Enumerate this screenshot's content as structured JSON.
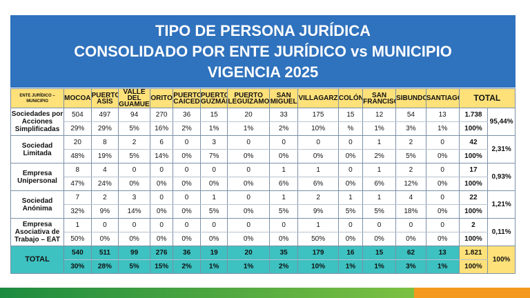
{
  "title": {
    "line1": "TIPO DE PERSONA JURÍDICA",
    "line2": "CONSOLIDADO POR ENTE JURÍDICO vs MUNICIPIO",
    "line3": "VIGENCIA 2025"
  },
  "table": {
    "corner": "ENTE JURÍDICO – MUNICIPIO",
    "municipios": [
      "MOCOA",
      "PUERTO ASÍS",
      "VALLE DEL GUAMUEZ",
      "ORITO",
      "PUERTO CAICEDO",
      "PUERTO GUZMÁN",
      "PUERTO LEGUÍZAMO",
      "SAN MIGUEL",
      "VILLAGARZÓN",
      "COLÓN",
      "SAN FRANCISCO",
      "SIBUNDOY",
      "SANTIAGO"
    ],
    "total_label": "TOTAL",
    "rows": [
      {
        "label": "Sociedades por Acciones Simplificadas",
        "counts": [
          "504",
          "497",
          "94",
          "270",
          "36",
          "15",
          "20",
          "33",
          "175",
          "15",
          "12",
          "54",
          "13"
        ],
        "pcts": [
          "29%",
          "29%",
          "5%",
          "16%",
          "2%",
          "1%",
          "1%",
          "2%",
          "10%",
          "%",
          "1%",
          "3%",
          "1%"
        ],
        "total": "1.738",
        "total_pct": "100%",
        "share": "95,44%"
      },
      {
        "label": "Sociedad Limitada",
        "counts": [
          "20",
          "8",
          "2",
          "6",
          "0",
          "3",
          "0",
          "0",
          "0",
          "0",
          "1",
          "2",
          "0"
        ],
        "pcts": [
          "48%",
          "19%",
          "5%",
          "14%",
          "0%",
          "7%",
          "0%",
          "0%",
          "0%",
          "0%",
          "2%",
          "5%",
          "0%"
        ],
        "total": "42",
        "total_pct": "100%",
        "share": "2,31%"
      },
      {
        "label": "Empresa Unipersonal",
        "counts": [
          "8",
          "4",
          "0",
          "0",
          "0",
          "0",
          "0",
          "1",
          "1",
          "0",
          "1",
          "2",
          "0"
        ],
        "pcts": [
          "47%",
          "24%",
          "0%",
          "0%",
          "0%",
          "0%",
          "0%",
          "6%",
          "6%",
          "0%",
          "6%",
          "12%",
          "0%"
        ],
        "total": "17",
        "total_pct": "100%",
        "share": "0,93%"
      },
      {
        "label": "Sociedad Anónima",
        "counts": [
          "7",
          "2",
          "3",
          "0",
          "0",
          "1",
          "0",
          "1",
          "2",
          "1",
          "1",
          "4",
          "0"
        ],
        "pcts": [
          "32%",
          "9%",
          "14%",
          "0%",
          "0%",
          "5%",
          "0%",
          "5%",
          "9%",
          "5%",
          "5%",
          "18%",
          "0%"
        ],
        "total": "22",
        "total_pct": "100%",
        "share": "1,21%"
      },
      {
        "label": "Empresa Asociativa de Trabajo – EAT",
        "counts": [
          "1",
          "0",
          "0",
          "0",
          "0",
          "0",
          "0",
          "0",
          "1",
          "0",
          "0",
          "0",
          "0"
        ],
        "pcts": [
          "50%",
          "0%",
          "0%",
          "0%",
          "0%",
          "0%",
          "0%",
          "0%",
          "50%",
          "0%",
          "0%",
          "0%",
          "0%"
        ],
        "total": "2",
        "total_pct": "100%",
        "share": "0,11%"
      }
    ],
    "total_row": {
      "label": "TOTAL",
      "counts": [
        "540",
        "511",
        "99",
        "276",
        "36",
        "19",
        "20",
        "35",
        "179",
        "16",
        "15",
        "62",
        "13"
      ],
      "pcts": [
        "30%",
        "28%",
        "5%",
        "15%",
        "2%",
        "1%",
        "1%",
        "2%",
        "10%",
        "1%",
        "1%",
        "3%",
        "1%"
      ],
      "total": "1.821",
      "total_pct": "100%",
      "share": "100%"
    }
  },
  "colors": {
    "title_bg": "#2f72bd",
    "header_bg": "#ffe17a",
    "total_row_bg": "#3ec1c1",
    "footer_green": "#1c8b3f",
    "footer_orange": "#f39a1e"
  }
}
